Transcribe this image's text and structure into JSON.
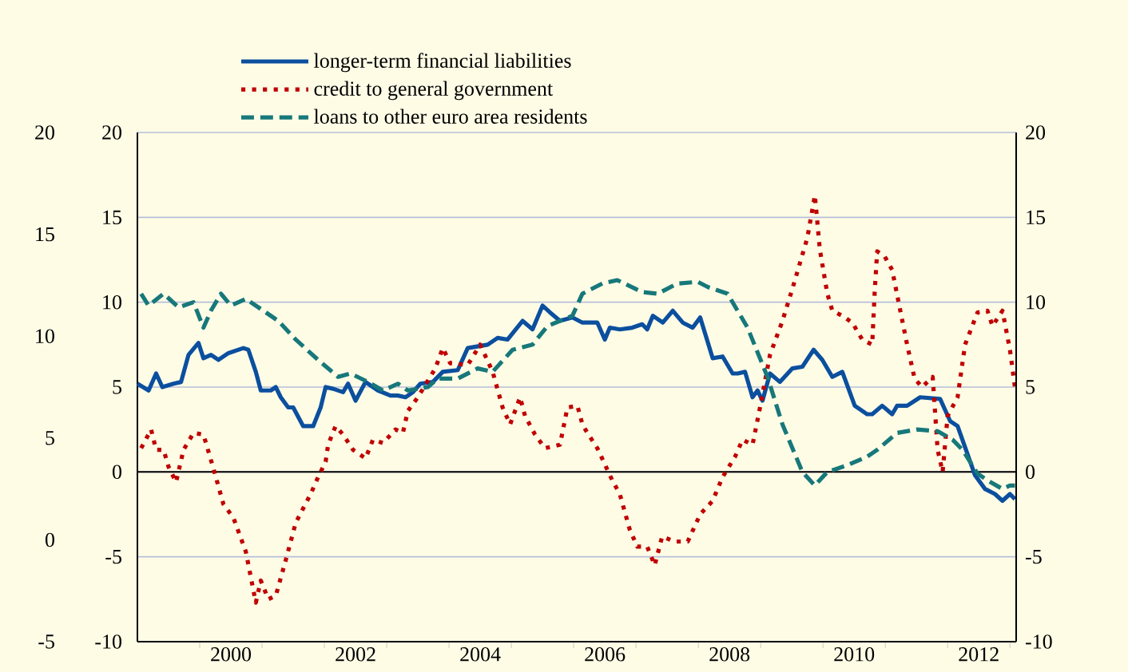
{
  "chart_data": {
    "type": "line",
    "xlim": [
      1999,
      2013.1
    ],
    "xticks": [
      {
        "value": 2000,
        "label": null
      },
      {
        "value": 2001,
        "label": null
      },
      {
        "value": 2002,
        "label": null
      },
      {
        "value": 2003,
        "label": null
      },
      {
        "value": 2004,
        "label": null
      },
      {
        "value": 2005,
        "label": null
      },
      {
        "value": 2006,
        "label": null
      },
      {
        "value": 2007,
        "label": null
      },
      {
        "value": 2008,
        "label": null
      },
      {
        "value": 2009,
        "label": null
      },
      {
        "value": 2010,
        "label": null
      },
      {
        "value": 2011,
        "label": null
      },
      {
        "value": 2012,
        "label": null
      },
      {
        "value": 2013,
        "label": null
      },
      {
        "value": 2000.5,
        "label": "2000"
      },
      {
        "value": 2002.5,
        "label": "2002"
      },
      {
        "value": 2004.5,
        "label": "2004"
      },
      {
        "value": 2006.5,
        "label": "2006"
      },
      {
        "value": 2008.5,
        "label": "2008"
      },
      {
        "value": 2010.5,
        "label": "2010"
      },
      {
        "value": 2012.5,
        "label": "2012"
      }
    ],
    "ylim": [
      -10,
      20
    ],
    "yticks": [
      -10,
      -5,
      0,
      5,
      10,
      15,
      20
    ],
    "y2lim": [
      -10,
      20
    ],
    "y2ticks": [
      -10,
      -5,
      0,
      5,
      10,
      15,
      20
    ],
    "y3lim": [
      -5,
      20
    ],
    "y3ticks": [
      -5,
      0,
      5,
      10,
      15,
      20
    ],
    "grid": "y",
    "legend": "top left",
    "ref_lines": [
      {
        "axis": "y",
        "value": 0,
        "color": "#000000"
      }
    ],
    "series": [
      {
        "name": "longer-term financial liabilities",
        "color": "#0b4f9e",
        "line_style": "solid",
        "x": [
          1999.0,
          1999.18,
          1999.3,
          1999.4,
          1999.58,
          1999.7,
          1999.82,
          1999.98,
          2000.06,
          2000.18,
          2000.3,
          2000.46,
          2000.7,
          2000.78,
          2000.9,
          2000.98,
          2001.14,
          2001.22,
          2001.3,
          2001.42,
          2001.5,
          2001.66,
          2001.82,
          2001.94,
          2002.02,
          2002.14,
          2002.3,
          2002.38,
          2002.5,
          2002.66,
          2002.86,
          2003.06,
          2003.18,
          2003.3,
          2003.42,
          2003.54,
          2003.74,
          2003.9,
          2004.14,
          2004.3,
          2004.62,
          2004.78,
          2004.94,
          2005.18,
          2005.34,
          2005.5,
          2005.62,
          2005.78,
          2005.98,
          2006.14,
          2006.38,
          2006.5,
          2006.58,
          2006.74,
          2006.94,
          2007.1,
          2007.18,
          2007.27,
          2007.43,
          2007.59,
          2007.75,
          2007.91,
          2008.03,
          2008.23,
          2008.39,
          2008.55,
          2008.63,
          2008.75,
          2008.87,
          2008.95,
          2009.03,
          2009.15,
          2009.31,
          2009.51,
          2009.67,
          2009.85,
          2009.99,
          2010.15,
          2010.31,
          2010.51,
          2010.71,
          2010.79,
          2010.95,
          2011.11,
          2011.19,
          2011.35,
          2011.56,
          2011.88,
          2012.04,
          2012.16,
          2012.44,
          2012.6,
          2012.76,
          2012.88,
          2013.0,
          2013.08
        ],
        "values": [
          5.2,
          4.8,
          5.8,
          5.0,
          5.2,
          5.3,
          6.9,
          7.6,
          6.7,
          6.9,
          6.6,
          7.0,
          7.3,
          7.2,
          5.9,
          4.8,
          4.8,
          5.0,
          4.4,
          3.8,
          3.8,
          2.7,
          2.7,
          3.8,
          5.0,
          4.9,
          4.7,
          5.2,
          4.2,
          5.3,
          4.8,
          4.5,
          4.5,
          4.4,
          4.7,
          5.2,
          5.3,
          5.9,
          6.0,
          7.3,
          7.5,
          7.9,
          7.8,
          8.9,
          8.4,
          9.8,
          9.4,
          8.9,
          9.1,
          8.8,
          8.8,
          7.8,
          8.5,
          8.4,
          8.5,
          8.7,
          8.4,
          9.2,
          8.8,
          9.5,
          8.8,
          8.5,
          9.1,
          6.7,
          6.8,
          5.8,
          5.8,
          5.9,
          4.4,
          4.8,
          4.2,
          5.8,
          5.3,
          6.1,
          6.2,
          7.2,
          6.6,
          5.6,
          5.9,
          3.9,
          3.4,
          3.4,
          3.9,
          3.4,
          3.9,
          3.9,
          4.4,
          4.3,
          3.0,
          2.7,
          -0.2,
          -1.0,
          -1.3,
          -1.7,
          -1.3,
          -1.6
        ]
      },
      {
        "name": "credit to general government",
        "color": "#c00000",
        "line_style": "dotted",
        "x": [
          1999.06,
          1999.22,
          1999.3,
          1999.42,
          1999.5,
          1999.62,
          1999.74,
          1999.9,
          2000.06,
          2000.22,
          2000.38,
          2000.54,
          2000.74,
          2000.9,
          2000.98,
          2001.1,
          2001.22,
          2001.38,
          2001.54,
          2001.78,
          2001.9,
          2002.02,
          2002.06,
          2002.18,
          2002.3,
          2002.46,
          2002.66,
          2002.78,
          2002.94,
          2003.14,
          2003.26,
          2003.34,
          2003.5,
          2003.78,
          2003.9,
          2004.02,
          2004.3,
          2004.5,
          2004.7,
          2004.86,
          2004.98,
          2005.14,
          2005.22,
          2005.38,
          2005.54,
          2005.78,
          2005.9,
          2006.06,
          2006.14,
          2006.22,
          2006.38,
          2006.62,
          2006.74,
          2006.9,
          2007.02,
          2007.18,
          2007.3,
          2007.42,
          2007.62,
          2007.83,
          2008.03,
          2008.23,
          2008.39,
          2008.59,
          2008.71,
          2008.87,
          2008.99,
          2009.15,
          2009.35,
          2009.51,
          2009.75,
          2009.87,
          2009.95,
          2010.07,
          2010.15,
          2010.31,
          2010.47,
          2010.63,
          2010.79,
          2010.83,
          2010.87,
          2010.99,
          2011.11,
          2011.23,
          2011.35,
          2011.47,
          2011.59,
          2011.76,
          2011.84,
          2011.92,
          2012.0,
          2012.16,
          2012.28,
          2012.48,
          2012.64,
          2012.72,
          2012.88,
          2013.0,
          2013.08
        ],
        "values": [
          1.4,
          2.5,
          1.3,
          1.3,
          0.3,
          -0.6,
          1.3,
          2.3,
          2.2,
          0.2,
          -1.9,
          -2.7,
          -4.7,
          -7.7,
          -6.4,
          -7.5,
          -7.3,
          -5.2,
          -3.0,
          -1.3,
          -0.3,
          0.6,
          1.6,
          2.7,
          2.2,
          1.3,
          0.8,
          1.9,
          1.7,
          2.5,
          2.3,
          3.6,
          4.4,
          6.1,
          7.3,
          6.4,
          6.3,
          7.5,
          5.9,
          3.8,
          2.8,
          4.4,
          3.3,
          2.2,
          1.4,
          1.6,
          3.8,
          3.9,
          2.8,
          2.3,
          1.4,
          -0.5,
          -1.3,
          -3.4,
          -4.4,
          -4.4,
          -5.5,
          -3.8,
          -4.1,
          -4.1,
          -2.5,
          -1.7,
          -0.3,
          0.9,
          1.9,
          1.6,
          3.8,
          6.9,
          8.9,
          10.8,
          13.8,
          16.3,
          13.1,
          10.5,
          9.5,
          9.2,
          8.8,
          7.8,
          7.5,
          10.6,
          13.0,
          12.7,
          11.9,
          9.7,
          7.5,
          5.5,
          5.0,
          5.6,
          1.3,
          0.0,
          3.3,
          4.4,
          7.5,
          9.4,
          9.5,
          8.6,
          9.5,
          7.2,
          5.0
        ]
      },
      {
        "name": "loans to other euro area residents",
        "color": "#17787a",
        "line_style": "dashed",
        "x": [
          1999.06,
          1999.18,
          1999.42,
          1999.66,
          1999.9,
          2000.06,
          2000.18,
          2000.34,
          2000.5,
          2000.74,
          2001.02,
          2001.26,
          2001.54,
          2001.9,
          2002.22,
          2002.42,
          2002.7,
          2002.94,
          2003.18,
          2003.34,
          2003.66,
          2003.82,
          2004.14,
          2004.46,
          2004.7,
          2005.02,
          2005.34,
          2005.58,
          2005.98,
          2006.14,
          2006.46,
          2006.7,
          2007.1,
          2007.35,
          2007.66,
          2007.99,
          2008.15,
          2008.47,
          2008.79,
          2009.11,
          2009.35,
          2009.67,
          2009.87,
          2010.07,
          2010.39,
          2010.71,
          2010.87,
          2011.19,
          2011.51,
          2011.84,
          2012.08,
          2012.24,
          2012.48,
          2012.64,
          2012.88,
          2013.0,
          2013.08
        ],
        "values": [
          10.5,
          9.8,
          10.5,
          9.7,
          10.0,
          8.5,
          9.5,
          10.5,
          9.8,
          10.2,
          9.5,
          8.9,
          7.8,
          6.6,
          5.6,
          5.8,
          5.3,
          4.8,
          5.2,
          4.8,
          5.0,
          5.5,
          5.5,
          6.1,
          5.9,
          7.2,
          7.5,
          8.6,
          9.2,
          10.5,
          11.1,
          11.3,
          10.6,
          10.5,
          11.1,
          11.2,
          10.9,
          10.5,
          8.5,
          5.6,
          2.8,
          0.0,
          -0.8,
          0.0,
          0.4,
          0.9,
          1.3,
          2.3,
          2.5,
          2.4,
          1.9,
          1.3,
          -0.1,
          -0.5,
          -1.0,
          -0.8,
          -0.8
        ]
      }
    ]
  }
}
